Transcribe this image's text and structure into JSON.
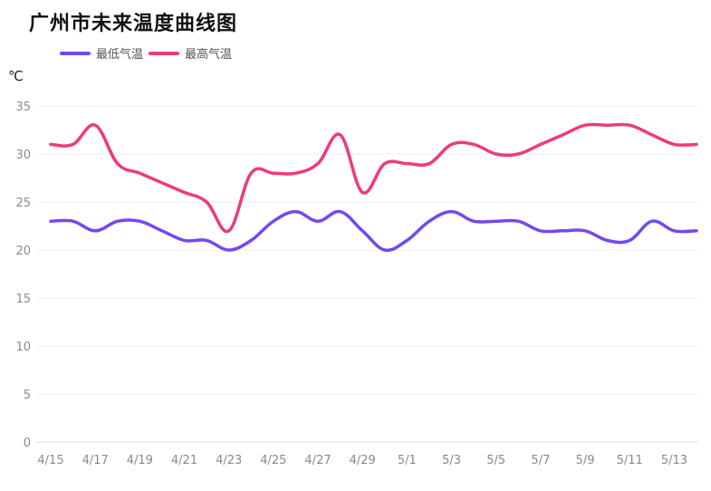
{
  "title": "广州市未来温度曲线图",
  "unit": "℃",
  "chart_data": {
    "type": "line",
    "title": "广州市未来温度曲线图",
    "ylabel": "℃",
    "xlabel": "",
    "ylim": [
      0,
      35
    ],
    "yticks": [
      0,
      5,
      10,
      15,
      20,
      25,
      30,
      35
    ],
    "grid": true,
    "legend_position": "top-left",
    "x": [
      "4/15",
      "4/16",
      "4/17",
      "4/18",
      "4/19",
      "4/20",
      "4/21",
      "4/22",
      "4/23",
      "4/24",
      "4/25",
      "4/26",
      "4/27",
      "4/28",
      "4/29",
      "4/30",
      "5/1",
      "5/2",
      "5/3",
      "5/4",
      "5/5",
      "5/6",
      "5/7",
      "5/8",
      "5/9",
      "5/10",
      "5/11",
      "5/12",
      "5/13",
      "5/14"
    ],
    "xticks": [
      "4/15",
      "4/17",
      "4/19",
      "4/21",
      "4/23",
      "4/25",
      "4/27",
      "4/29",
      "5/1",
      "5/3",
      "5/5",
      "5/7",
      "5/9",
      "5/11",
      "5/13"
    ],
    "series": [
      {
        "name": "最低气温",
        "color": "#7448f0",
        "values": [
          23,
          23,
          22,
          23,
          23,
          22,
          21,
          21,
          20,
          21,
          23,
          24,
          23,
          24,
          22,
          20,
          21,
          23,
          24,
          23,
          23,
          23,
          22,
          22,
          22,
          21,
          21,
          23,
          22,
          22
        ]
      },
      {
        "name": "最高气温",
        "color": "#ee3a7e",
        "values": [
          31,
          31,
          33,
          29,
          28,
          27,
          26,
          25,
          22,
          28,
          28,
          28,
          29,
          32,
          26,
          29,
          29,
          29,
          31,
          31,
          30,
          30,
          31,
          32,
          33,
          33,
          33,
          32,
          31,
          31
        ]
      }
    ]
  }
}
